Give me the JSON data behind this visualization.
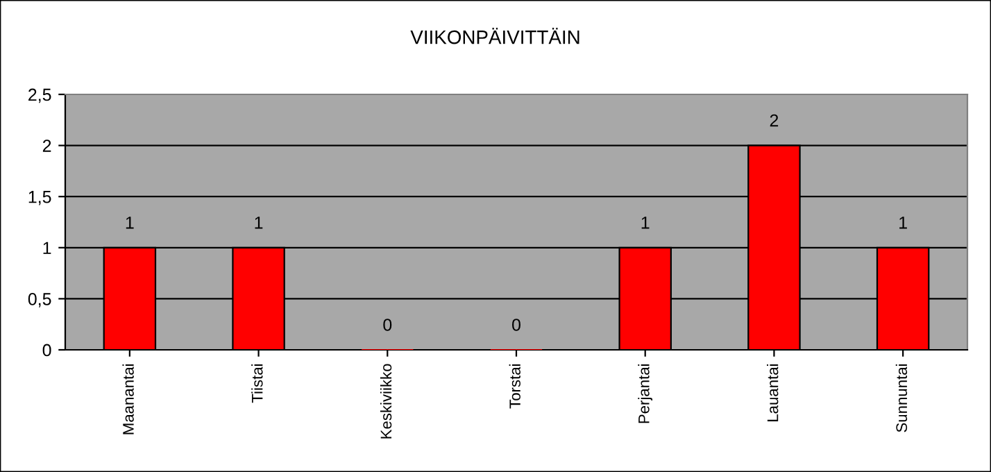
{
  "chart_data": {
    "type": "bar",
    "title": "VIIKONPÄIVITTÄIN",
    "categories": [
      "Maanantai",
      "Tiistai",
      "Keskiviikko",
      "Torstai",
      "Perjantai",
      "Lauantai",
      "Sunnuntai"
    ],
    "values": [
      1,
      1,
      0,
      0,
      1,
      2,
      1
    ],
    "color": "#ff0000",
    "ylim": [
      0,
      2.5
    ],
    "yticks": [
      0,
      {
        "value": 0.5,
        "label": "0,5"
      },
      1,
      {
        "value": 1.5,
        "label": "1,5"
      },
      2,
      {
        "value": 2.5,
        "label": "2,5"
      }
    ],
    "grid": "y",
    "data_labels": true
  }
}
